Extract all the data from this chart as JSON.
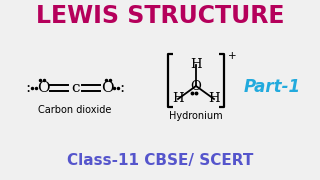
{
  "title": "LEWIS STRUCTURE",
  "title_color": "#b5005b",
  "bg_color": "#f0f0f0",
  "subtitle": "Class-11 CBSE/ SCERT",
  "subtitle_color": "#5555cc",
  "part_label": "Part-1",
  "part_color": "#22aadd",
  "co2_label": "Carbon dioxide",
  "hydronium_label": "Hydronium",
  "figsize": [
    3.2,
    1.8
  ],
  "dpi": 100
}
